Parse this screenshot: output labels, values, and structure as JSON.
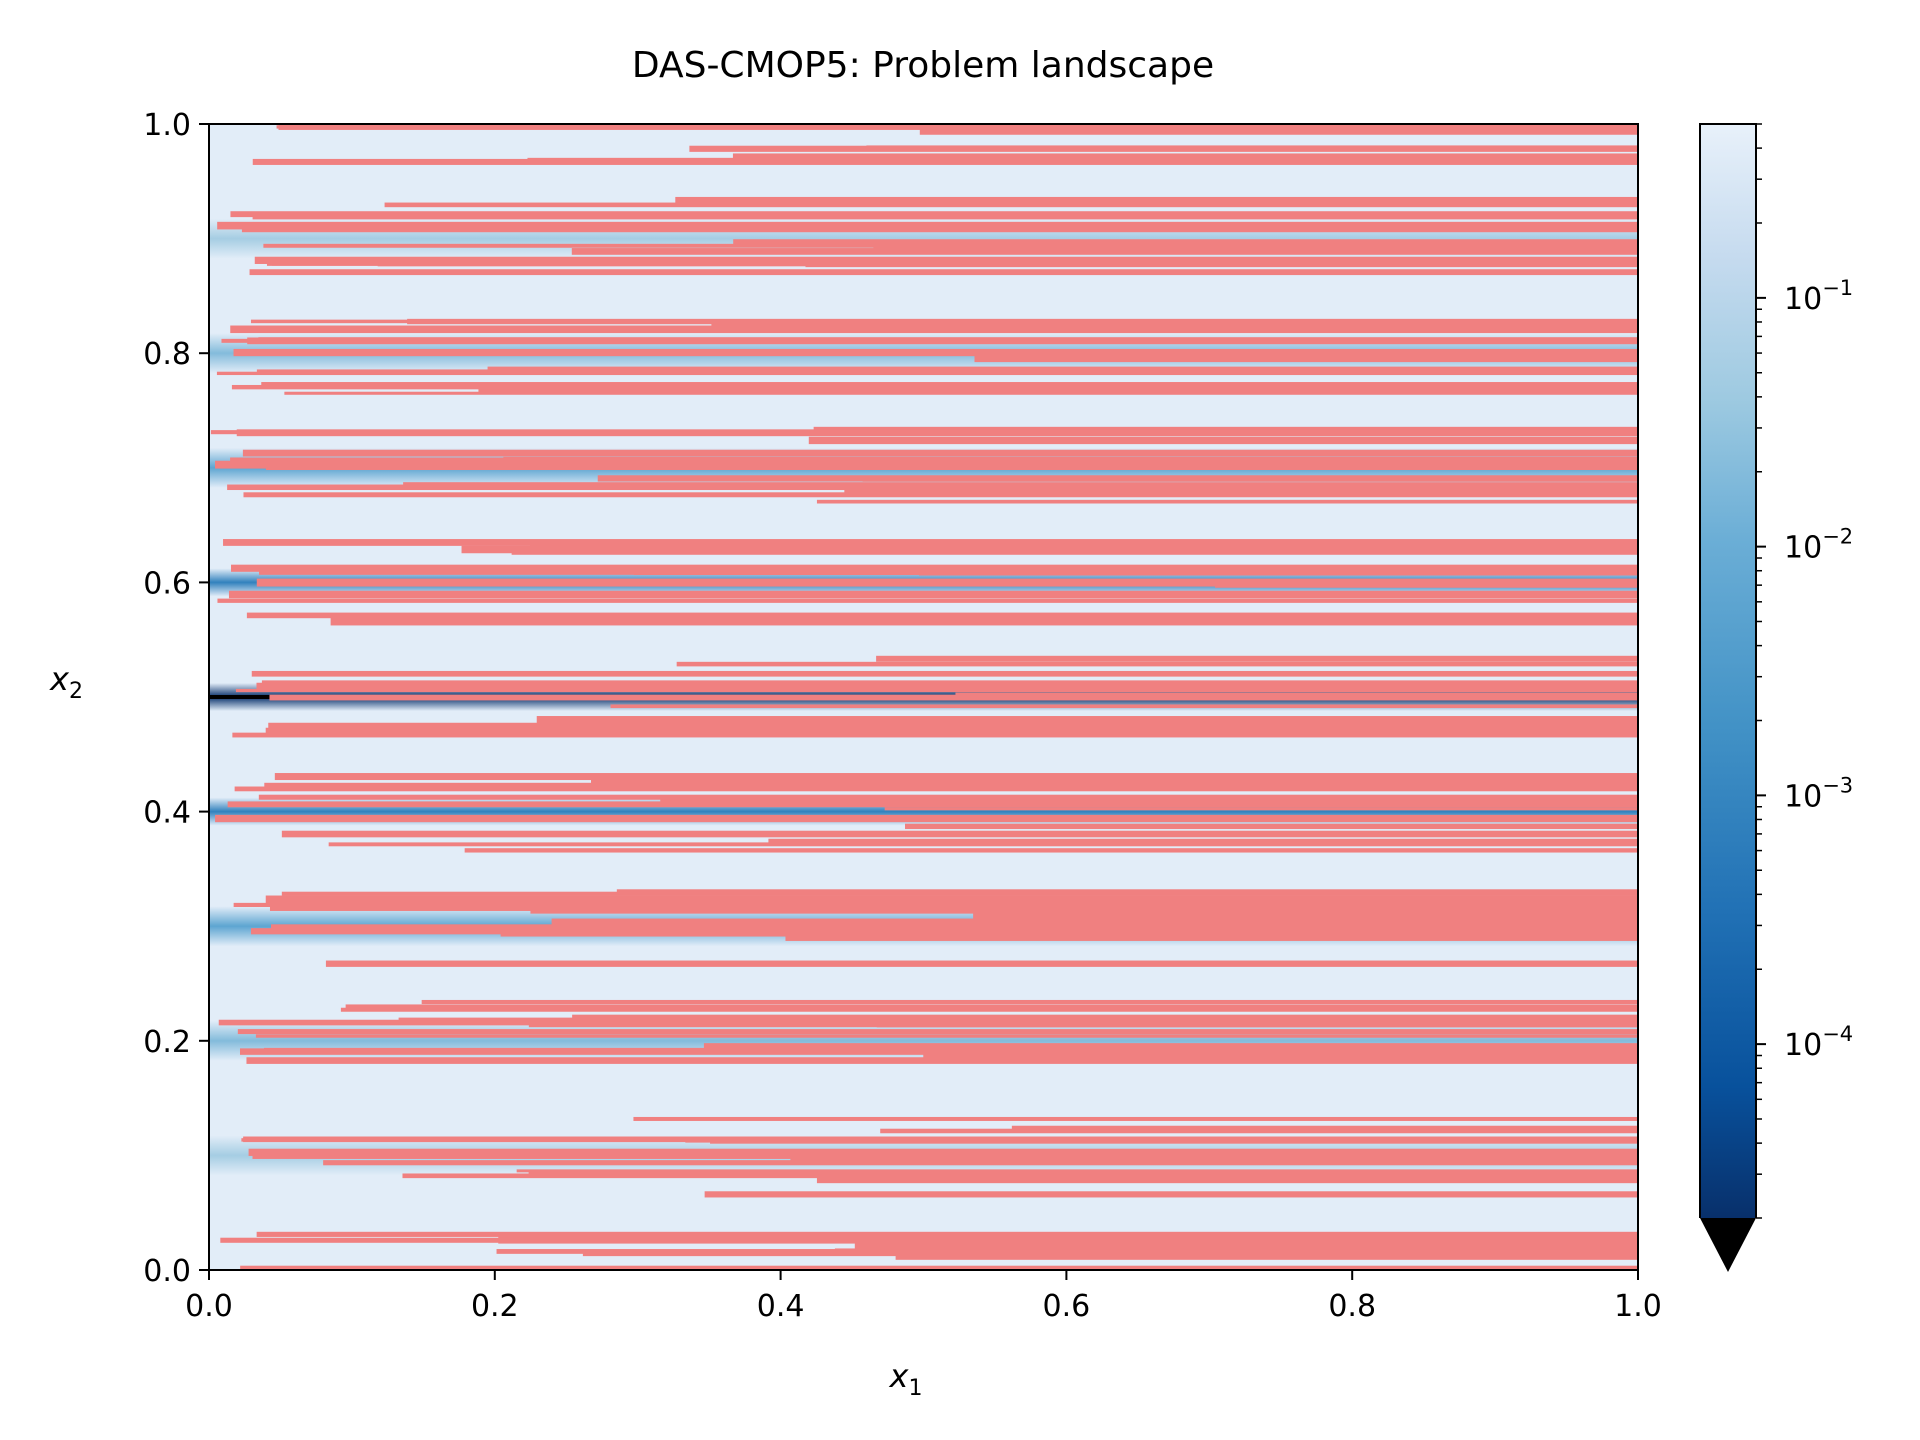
{
  "chart_data": {
    "type": "heatmap",
    "title": "DAS-CMOP5: Problem landscape",
    "xlabel": "x",
    "xlabel_sub": "1",
    "ylabel": "x",
    "ylabel_sub": "2",
    "xlim": [
      0.0,
      1.0
    ],
    "ylim": [
      0.0,
      1.0
    ],
    "xticks": [
      "0.0",
      "0.2",
      "0.4",
      "0.6",
      "0.8",
      "1.0"
    ],
    "yticks": [
      "0.0",
      "0.2",
      "0.4",
      "0.6",
      "0.8",
      "1.0"
    ],
    "grid": false,
    "colormap": "Blues_r",
    "colorbar": {
      "scale": "log",
      "range": [
        2e-05,
        0.5
      ],
      "ticks": [
        {
          "base": "10",
          "exp": "−1",
          "value": 0.1
        },
        {
          "base": "10",
          "exp": "−2",
          "value": 0.01
        },
        {
          "base": "10",
          "exp": "−3",
          "value": 0.001
        },
        {
          "base": "10",
          "exp": "−4",
          "value": 0.0001
        }
      ],
      "extend": "min"
    },
    "valley_lines_x2": [
      0.1,
      0.2,
      0.3,
      0.4,
      0.5,
      0.6,
      0.7,
      0.8,
      0.9
    ],
    "valley_depth": [
      0.05,
      0.02,
      0.006,
      0.0008,
      2e-05,
      0.0008,
      0.006,
      0.02,
      0.05
    ],
    "infeasible_color": "#f08080"
  }
}
